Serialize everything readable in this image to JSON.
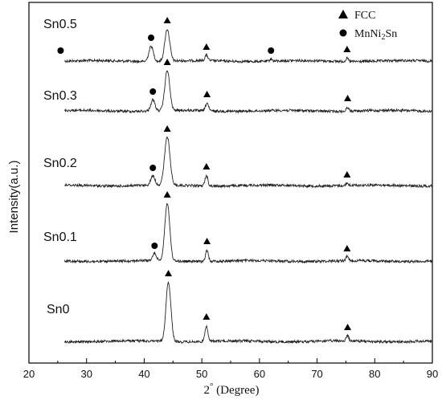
{
  "chart_data": {
    "type": "line",
    "xlabel_prefix": "2",
    "xlabel_degree": "°",
    "xlabel_suffix": " (Degree)",
    "ylabel": "Intensity(a.u.)",
    "xlim": [
      20,
      90
    ],
    "xticks": [
      "20",
      "30",
      "40",
      "50",
      "60",
      "70",
      "80",
      "90"
    ],
    "legend": {
      "position": "top-right",
      "entries": [
        {
          "marker": "triangle",
          "label": "FCC"
        },
        {
          "marker": "circle",
          "label_main": "MnNi",
          "label_sub": "2",
          "label_tail": "Sn"
        }
      ]
    },
    "series": [
      {
        "name": "Sn0.5",
        "peaks": [
          {
            "x": 25.5,
            "h": 3,
            "w": 0.35,
            "phase": "MnNi2Sn"
          },
          {
            "x": 41.2,
            "h": 19,
            "w": 0.55,
            "phase": "MnNi2Sn"
          },
          {
            "x": 44.0,
            "h": 40,
            "w": 0.6,
            "phase": "FCC"
          },
          {
            "x": 50.8,
            "h": 7,
            "w": 0.35,
            "phase": "FCC"
          },
          {
            "x": 62.0,
            "h": 3,
            "w": 0.3,
            "phase": "MnNi2Sn"
          },
          {
            "x": 75.2,
            "h": 4,
            "w": 0.3,
            "phase": "FCC"
          }
        ]
      },
      {
        "name": "Sn0.3",
        "peaks": [
          {
            "x": 41.5,
            "h": 14,
            "w": 0.5,
            "phase": "MnNi2Sn"
          },
          {
            "x": 44.0,
            "h": 50,
            "w": 0.6,
            "phase": "FCC"
          },
          {
            "x": 50.9,
            "h": 10,
            "w": 0.35,
            "phase": "FCC"
          },
          {
            "x": 75.3,
            "h": 5,
            "w": 0.3,
            "phase": "FCC"
          }
        ]
      },
      {
        "name": "Sn0.2",
        "peaks": [
          {
            "x": 41.5,
            "h": 12,
            "w": 0.5,
            "phase": "MnNi2Sn"
          },
          {
            "x": 44.0,
            "h": 60,
            "w": 0.65,
            "phase": "FCC"
          },
          {
            "x": 50.8,
            "h": 13,
            "w": 0.35,
            "phase": "FCC"
          },
          {
            "x": 75.2,
            "h": 3,
            "w": 0.3,
            "phase": "FCC"
          }
        ]
      },
      {
        "name": "Sn0.1",
        "peaks": [
          {
            "x": 41.8,
            "h": 9,
            "w": 0.45,
            "phase": "MnNi2Sn"
          },
          {
            "x": 44.0,
            "h": 72,
            "w": 0.6,
            "phase": "FCC"
          },
          {
            "x": 50.9,
            "h": 14,
            "w": 0.35,
            "phase": "FCC"
          },
          {
            "x": 75.2,
            "h": 5,
            "w": 0.3,
            "phase": "FCC"
          }
        ]
      },
      {
        "name": "Sn0",
        "peaks": [
          {
            "x": 44.2,
            "h": 74,
            "w": 0.6,
            "phase": "FCC"
          },
          {
            "x": 50.8,
            "h": 20,
            "w": 0.35,
            "phase": "FCC"
          },
          {
            "x": 75.3,
            "h": 7,
            "w": 0.3,
            "phase": "FCC"
          }
        ]
      }
    ]
  }
}
